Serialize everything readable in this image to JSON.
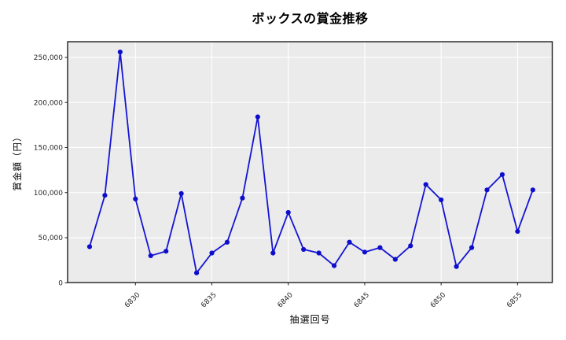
{
  "title": "ボックスの賞金推移",
  "colors": {
    "page_bg": "#ffffff",
    "plot_bg": "#ebebeb",
    "grid": "#ffffff",
    "spine": "#1f1f1f",
    "tick_text": "#262626",
    "line": "#1414d4",
    "marker": "#0d0dcd",
    "text": "#000000"
  },
  "chart_data": {
    "type": "line",
    "title": "ボックスの賞金推移",
    "xlabel": "抽選回号",
    "ylabel": "賞金額（円）",
    "x": [
      6827,
      6828,
      6829,
      6830,
      6831,
      6832,
      6833,
      6834,
      6835,
      6836,
      6837,
      6838,
      6839,
      6840,
      6841,
      6842,
      6843,
      6844,
      6845,
      6846,
      6847,
      6848,
      6849,
      6850,
      6851,
      6852,
      6853,
      6854,
      6855,
      6856
    ],
    "y": [
      40000,
      97000,
      256000,
      93000,
      30000,
      35000,
      99000,
      11000,
      33000,
      45000,
      94000,
      184000,
      33000,
      78000,
      37000,
      33000,
      19000,
      45000,
      34000,
      39000,
      26000,
      41000,
      109000,
      92000,
      18000,
      39000,
      103000,
      120000,
      57000,
      103000
    ],
    "x_ticks": [
      6830,
      6835,
      6840,
      6845,
      6850,
      6855
    ],
    "y_ticks": [
      0,
      50000,
      100000,
      150000,
      200000,
      250000
    ],
    "y_tick_labels": [
      "0",
      "50,000",
      "100,000",
      "150,000",
      "200,000",
      "250,000"
    ],
    "xlim": [
      6825.5,
      6857.3
    ],
    "ylim": [
      0,
      267400
    ],
    "grid": true,
    "legend": "none",
    "marker": "circle"
  }
}
